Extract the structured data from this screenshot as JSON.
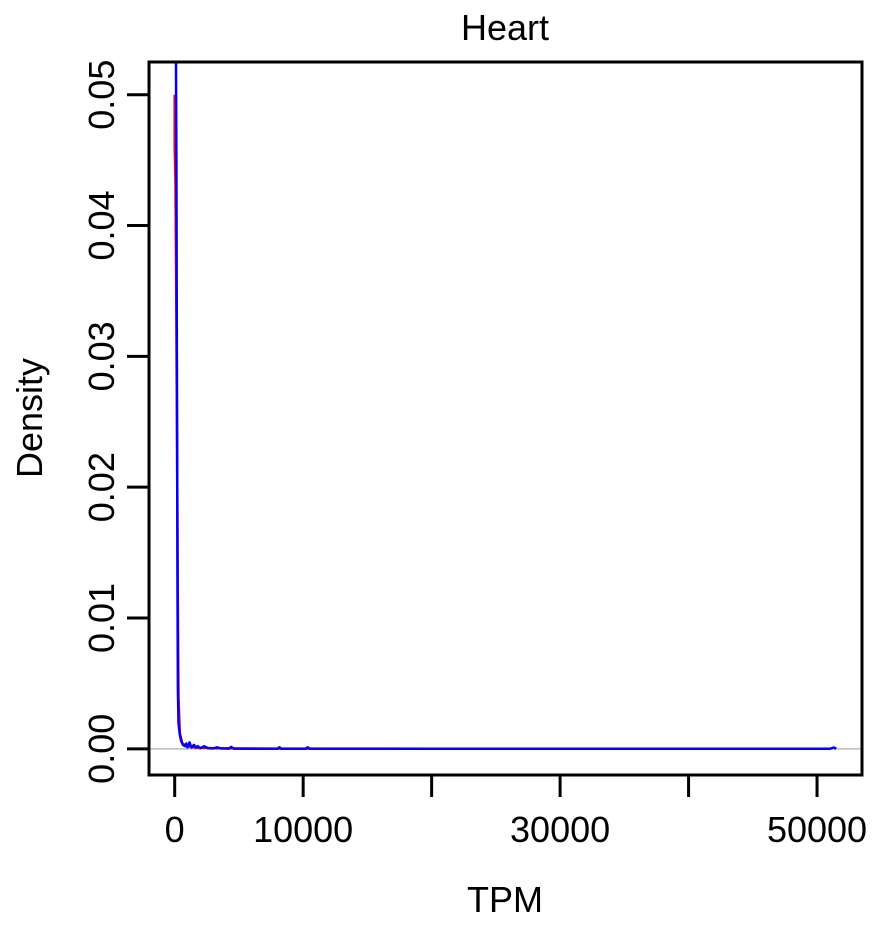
{
  "chart_data": {
    "type": "line",
    "title": "Heart",
    "xlabel": "TPM",
    "ylabel": "Density",
    "xlim": [
      -2000,
      53500
    ],
    "ylim": [
      -0.002,
      0.0525
    ],
    "x_ticks": [
      0,
      10000,
      20000,
      30000,
      40000,
      50000
    ],
    "x_tick_labels": [
      "0",
      "10000",
      "",
      "30000",
      "",
      "50000"
    ],
    "y_ticks": [
      0.0,
      0.01,
      0.02,
      0.03,
      0.04,
      0.05
    ],
    "y_tick_labels": [
      "0.00",
      "0.01",
      "0.02",
      "0.03",
      "0.04",
      "0.05"
    ],
    "reference_line": {
      "y": 0,
      "color": "#bbbbbb"
    },
    "grid": false,
    "series": [
      {
        "color": "#ff0000",
        "points": [
          [
            0,
            0.05
          ],
          [
            0,
            0.046
          ],
          [
            60,
            0.043
          ],
          [
            120,
            0.035
          ],
          [
            180,
            0.024
          ],
          [
            240,
            0.012
          ],
          [
            300,
            0.004
          ],
          [
            400,
            0.0012
          ],
          [
            600,
            0.0004
          ],
          [
            1000,
            0.0002
          ],
          [
            1600,
            0.0001
          ],
          [
            3000,
            5e-05
          ],
          [
            8000,
            2e-05
          ],
          [
            20000,
            1e-05
          ],
          [
            51000,
            1e-05
          ]
        ]
      },
      {
        "color": "#0000ff",
        "points": [
          [
            100,
            0.0525
          ],
          [
            110,
            0.05
          ],
          [
            130,
            0.045
          ],
          [
            160,
            0.035
          ],
          [
            190,
            0.024
          ],
          [
            220,
            0.012
          ],
          [
            250,
            0.0045
          ],
          [
            300,
            0.002
          ],
          [
            380,
            0.0012
          ],
          [
            500,
            0.0006
          ],
          [
            650,
            0.0003
          ],
          [
            800,
            0.0002
          ],
          [
            900,
            0.0004
          ],
          [
            1000,
            0.0001
          ],
          [
            1150,
            0.0005
          ],
          [
            1300,
            0.0001
          ],
          [
            1500,
            0.0003
          ],
          [
            1650,
            0.0001
          ],
          [
            1800,
            0.0002
          ],
          [
            2000,
            5e-05
          ],
          [
            2300,
            0.0002
          ],
          [
            2600,
            5e-05
          ],
          [
            3000,
            3e-05
          ],
          [
            3300,
            0.00012
          ],
          [
            3600,
            3e-05
          ],
          [
            4200,
            2e-05
          ],
          [
            4400,
            0.00015
          ],
          [
            4600,
            2e-05
          ],
          [
            6000,
            1e-05
          ],
          [
            8000,
            1e-05
          ],
          [
            8150,
            0.00012
          ],
          [
            8300,
            1e-05
          ],
          [
            10200,
            1e-05
          ],
          [
            10350,
            0.00012
          ],
          [
            10500,
            1e-05
          ],
          [
            20000,
            5e-06
          ],
          [
            30000,
            5e-06
          ],
          [
            40000,
            5e-06
          ],
          [
            50000,
            5e-06
          ],
          [
            51000,
            5e-06
          ],
          [
            51300,
            0.0001
          ],
          [
            51500,
            5e-06
          ]
        ]
      }
    ]
  }
}
